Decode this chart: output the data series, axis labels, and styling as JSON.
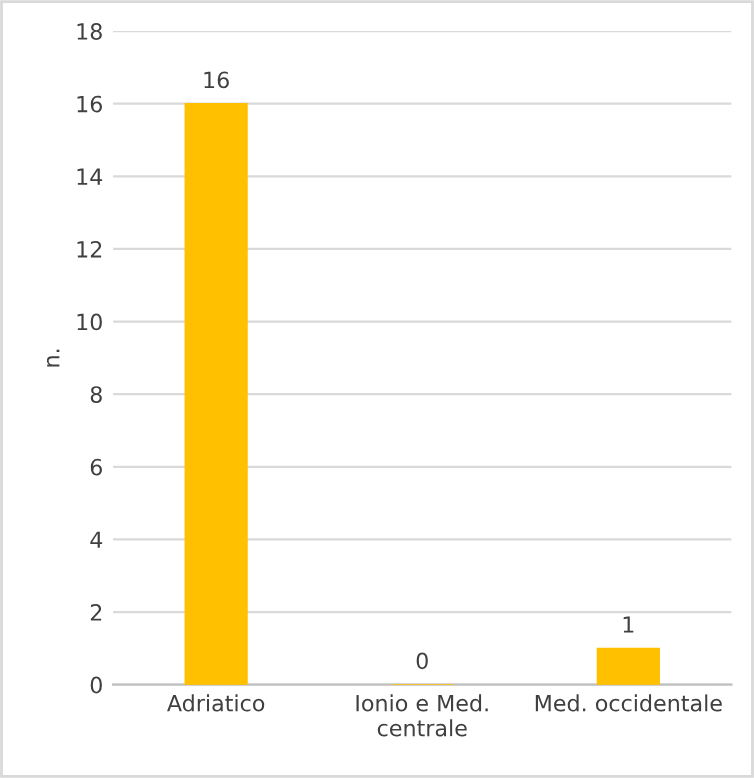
{
  "chart_data": {
    "type": "bar",
    "ylabel": "n.",
    "categories": [
      "Adriatico",
      "Ionio e Med.\ncentrale",
      "Med. occidentale"
    ],
    "values": [
      16,
      0,
      1
    ],
    "color": "#ffc000",
    "ylim": [
      0,
      18
    ],
    "yticks": [
      0,
      2,
      4,
      6,
      8,
      10,
      12,
      14,
      16,
      18
    ],
    "grid": "y",
    "data_labels": true
  }
}
